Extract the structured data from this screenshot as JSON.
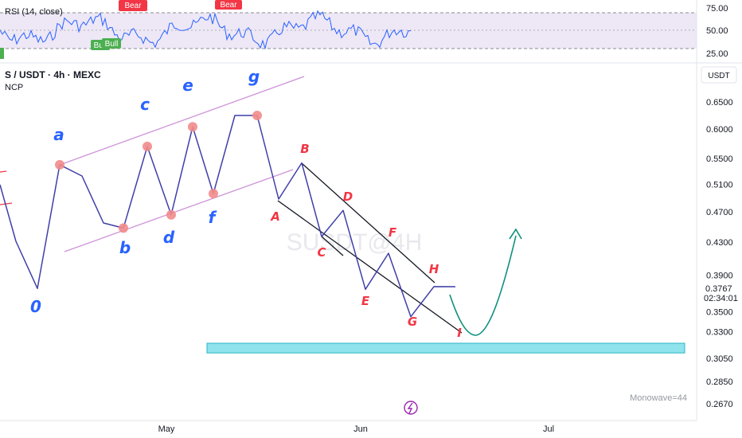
{
  "rsi_panel": {
    "title": "RSI (14, close)",
    "levels": [
      "75.00",
      "50.00",
      "25.00"
    ],
    "badges": [
      "Bear",
      "Bear",
      "Bull",
      "Bull"
    ],
    "colors": {
      "line": "#2962ff",
      "band": "#ede7f6",
      "bear": "#f23645",
      "bull": "#4caf50"
    }
  },
  "header": {
    "symbol": "S / USDT · 4h · MEXC",
    "subtitle": "NCP"
  },
  "watermark": "SUSDT@4H",
  "price_axis": {
    "currency": "USDT",
    "ticks": [
      "0.6500",
      "0.6000",
      "0.5500",
      "0.5100",
      "0.4700",
      "0.4300",
      "0.3900",
      "0.3500",
      "0.3300",
      "0.3050",
      "0.2850",
      "0.2670"
    ],
    "current_price": "0.3767",
    "countdown": "02:34:01"
  },
  "time_axis": {
    "ticks": [
      "May",
      "Jun",
      "Jul"
    ]
  },
  "footer": {
    "monowave": "Monowave=44",
    "tv_icon": "lightning-logo-icon"
  },
  "chart_data": {
    "type": "line",
    "title": "S / USDT · 4h · MEXC",
    "ylim": [
      0.26,
      0.7
    ],
    "y_scale": "log",
    "main_series": [
      {
        "label": "0",
        "price": 0.375
      },
      {
        "label": "a",
        "price": 0.54
      },
      {
        "label": "b",
        "price": 0.448
      },
      {
        "label": "c",
        "price": 0.57
      },
      {
        "label": "d",
        "price": 0.466
      },
      {
        "label": "e",
        "price": 0.604
      },
      {
        "label": "f",
        "price": 0.496
      },
      {
        "label": "g",
        "price": 0.625
      },
      {
        "label": "A",
        "price": 0.488
      },
      {
        "label": "B",
        "price": 0.543
      },
      {
        "label": "C",
        "price": 0.437
      },
      {
        "label": "D",
        "price": 0.472
      },
      {
        "label": "E",
        "price": 0.374
      },
      {
        "label": "F",
        "price": 0.416
      },
      {
        "label": "G",
        "price": 0.345
      },
      {
        "label": "H",
        "price": 0.377
      },
      {
        "label": "I",
        "price": 0.328
      }
    ],
    "wave_labels": [
      "0",
      "a",
      "b",
      "c",
      "d",
      "e",
      "f",
      "g",
      "A",
      "B",
      "C",
      "D",
      "E",
      "F",
      "G",
      "H",
      "I"
    ],
    "projection_target": 0.423,
    "support_zone": [
      0.31,
      0.319
    ],
    "annotation": "Monowave=44"
  }
}
